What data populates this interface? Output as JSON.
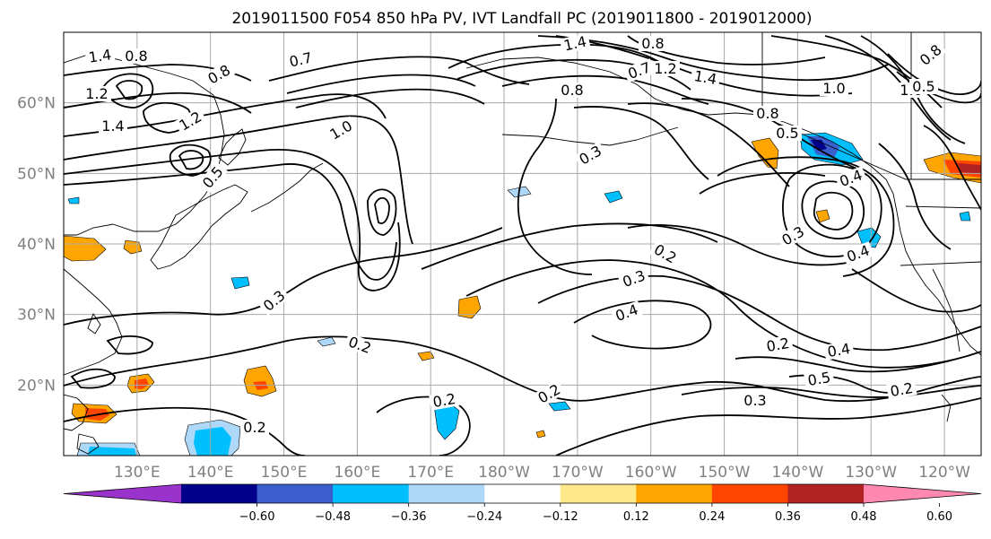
{
  "figure": {
    "title": "2019011500 F054 850 hPa PV, IVT Landfall PC (2019011800 - 2019012000)"
  },
  "map": {
    "projection": "equirectangular",
    "lon_range_deg": [
      120,
      245
    ],
    "lat_range_deg": [
      10,
      70
    ],
    "latitude_labels": [
      "60°N",
      "50°N",
      "40°N",
      "30°N",
      "20°N"
    ],
    "longitude_labels": [
      "130°E",
      "140°E",
      "150°E",
      "160°E",
      "170°E",
      "180°W",
      "170°W",
      "160°W",
      "150°W",
      "140°W",
      "130°W",
      "120°W"
    ],
    "gridlines": true,
    "coastlines": true
  },
  "contours": {
    "field": "850 hPa PV",
    "labels": [
      "1.4",
      "0.8",
      "1.2",
      "1.4",
      "0.8",
      "0.7",
      "1.2",
      "1.0",
      "0.5",
      "1.4",
      "0.8",
      "0.7",
      "0.8",
      "1.4",
      "1.0",
      "1.2",
      "0.8",
      "0.5",
      "1.0",
      "0.8",
      "0.5",
      "0.3",
      "0.4",
      "0.4",
      "0.3",
      "0.2",
      "0.3",
      "0.4",
      "0.3",
      "0.2",
      "0.2",
      "0.4",
      "0.5",
      "0.2",
      "0.3",
      "0.2",
      "0.2",
      "0.2"
    ]
  },
  "shading": {
    "field": "IVT Landfall PC",
    "colors": [
      "#9933cc",
      "#00008b",
      "#3a5fcd",
      "#00bfff",
      "#add8f8",
      "#ffffff",
      "#ffe88a",
      "#ffa500",
      "#ff4500",
      "#b22222",
      "#ff88b0"
    ],
    "levels": [
      -0.6,
      -0.48,
      -0.36,
      -0.24,
      -0.12,
      0.12,
      0.24,
      0.36,
      0.48,
      0.6
    ]
  },
  "colorbar": {
    "tick_labels": [
      "−0.60",
      "−0.48",
      "−0.36",
      "−0.24",
      "−0.12",
      "0.12",
      "0.24",
      "0.36",
      "0.48",
      "0.60"
    ],
    "extend": "both"
  }
}
